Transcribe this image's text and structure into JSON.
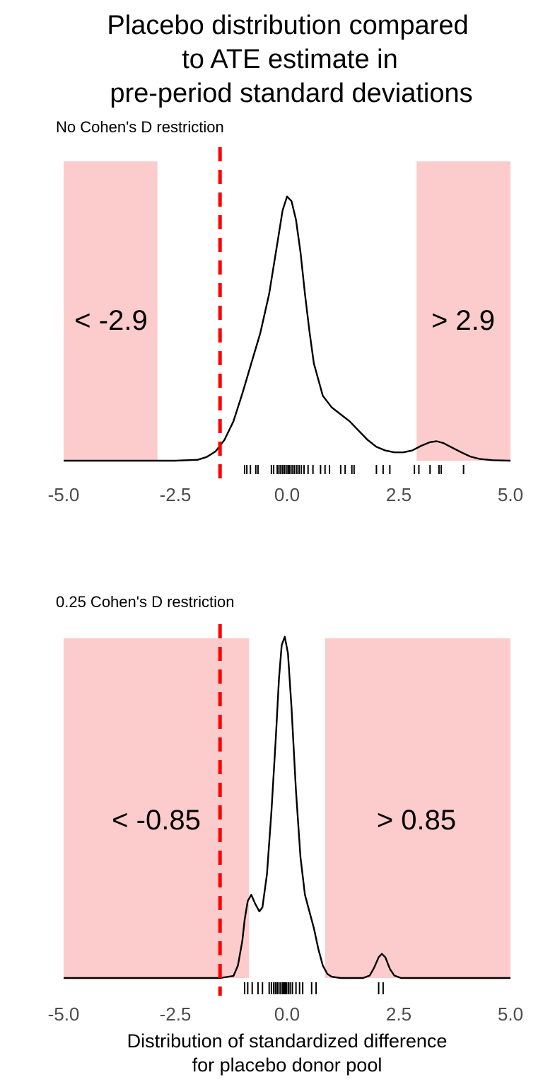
{
  "chart_data": {
    "type": "density",
    "title": [
      "Placebo distribution compared",
      "to ATE estimate in",
      "pre-period standard deviations"
    ],
    "xlabel": [
      "Distribution of standardized difference",
      "for placebo donor pool"
    ],
    "ate_line": {
      "x": -1.5,
      "color": "#ff0000",
      "style": "dashed"
    },
    "shade_color": "#fccccc",
    "xlim": [
      -5,
      5
    ],
    "x_ticks": [
      -5,
      -2.5,
      0,
      2.5,
      5
    ],
    "x_tick_labels": [
      "-5.0",
      "-2.5",
      "0.0",
      "2.5",
      "5.0"
    ],
    "panels": [
      {
        "subtitle": "No Cohen's D restriction",
        "regions": [
          {
            "from": -5,
            "to": -2.9,
            "label": "< -2.9"
          },
          {
            "from": 2.9,
            "to": 5,
            "label": "> 2.9"
          }
        ],
        "density": [
          [
            -5.0,
            0
          ],
          [
            -2.5,
            0
          ],
          [
            -2.0,
            0.002
          ],
          [
            -1.8,
            0.008
          ],
          [
            -1.6,
            0.02
          ],
          [
            -1.4,
            0.045
          ],
          [
            -1.2,
            0.085
          ],
          [
            -1.0,
            0.145
          ],
          [
            -0.8,
            0.21
          ],
          [
            -0.6,
            0.275
          ],
          [
            -0.4,
            0.36
          ],
          [
            -0.2,
            0.48
          ],
          [
            -0.1,
            0.54
          ],
          [
            0.0,
            0.57
          ],
          [
            0.1,
            0.56
          ],
          [
            0.2,
            0.52
          ],
          [
            0.3,
            0.45
          ],
          [
            0.4,
            0.36
          ],
          [
            0.5,
            0.28
          ],
          [
            0.6,
            0.21
          ],
          [
            0.8,
            0.14
          ],
          [
            1.0,
            0.115
          ],
          [
            1.2,
            0.1
          ],
          [
            1.4,
            0.085
          ],
          [
            1.6,
            0.065
          ],
          [
            1.8,
            0.045
          ],
          [
            2.0,
            0.03
          ],
          [
            2.2,
            0.022
          ],
          [
            2.4,
            0.018
          ],
          [
            2.6,
            0.018
          ],
          [
            2.8,
            0.022
          ],
          [
            3.0,
            0.032
          ],
          [
            3.2,
            0.04
          ],
          [
            3.35,
            0.042
          ],
          [
            3.5,
            0.038
          ],
          [
            3.7,
            0.028
          ],
          [
            3.9,
            0.018
          ],
          [
            4.1,
            0.009
          ],
          [
            4.3,
            0.004
          ],
          [
            4.6,
            0.001
          ],
          [
            5.0,
            0
          ]
        ],
        "density_ymax": 1.0,
        "rug": [
          -0.95,
          -0.9,
          -0.82,
          -0.7,
          -0.65,
          -0.35,
          -0.3,
          -0.22,
          -0.18,
          -0.14,
          -0.1,
          -0.06,
          -0.02,
          0.02,
          0.05,
          0.09,
          0.13,
          0.17,
          0.22,
          0.27,
          0.32,
          0.38,
          0.47,
          0.58,
          0.75,
          0.85,
          0.95,
          1.2,
          1.3,
          1.45,
          1.5,
          2.0,
          2.15,
          2.3,
          2.85,
          2.95,
          3.2,
          3.4,
          3.45,
          3.95
        ]
      },
      {
        "subtitle": "0.25 Cohen's D restriction",
        "regions": [
          {
            "from": -5,
            "to": -0.85,
            "label": "< -0.85"
          },
          {
            "from": 0.85,
            "to": 5,
            "label": "> 0.85"
          }
        ],
        "density": [
          [
            -5.0,
            0
          ],
          [
            -1.5,
            0
          ],
          [
            -1.2,
            0.005
          ],
          [
            -1.1,
            0.03
          ],
          [
            -1.0,
            0.09
          ],
          [
            -0.95,
            0.14
          ],
          [
            -0.88,
            0.185
          ],
          [
            -0.8,
            0.2
          ],
          [
            -0.72,
            0.18
          ],
          [
            -0.62,
            0.16
          ],
          [
            -0.55,
            0.17
          ],
          [
            -0.45,
            0.25
          ],
          [
            -0.35,
            0.4
          ],
          [
            -0.25,
            0.58
          ],
          [
            -0.18,
            0.72
          ],
          [
            -0.12,
            0.8
          ],
          [
            -0.05,
            0.82
          ],
          [
            0.02,
            0.78
          ],
          [
            0.1,
            0.65
          ],
          [
            0.2,
            0.45
          ],
          [
            0.3,
            0.29
          ],
          [
            0.4,
            0.2
          ],
          [
            0.5,
            0.16
          ],
          [
            0.6,
            0.12
          ],
          [
            0.7,
            0.07
          ],
          [
            0.8,
            0.03
          ],
          [
            0.9,
            0.01
          ],
          [
            1.0,
            0.003
          ],
          [
            1.2,
            0.0
          ],
          [
            1.7,
            0.0
          ],
          [
            1.85,
            0.006
          ],
          [
            1.95,
            0.025
          ],
          [
            2.05,
            0.05
          ],
          [
            2.12,
            0.058
          ],
          [
            2.2,
            0.05
          ],
          [
            2.3,
            0.022
          ],
          [
            2.4,
            0.006
          ],
          [
            2.55,
            0.0
          ],
          [
            5.0,
            0
          ]
        ],
        "density_ymax": 1.0,
        "rug": [
          -0.95,
          -0.88,
          -0.78,
          -0.65,
          -0.55,
          -0.4,
          -0.35,
          -0.3,
          -0.26,
          -0.22,
          -0.18,
          -0.14,
          -0.1,
          -0.07,
          -0.04,
          -0.01,
          0.03,
          0.07,
          0.12,
          0.2,
          0.28,
          0.35,
          0.55,
          0.65,
          2.05,
          2.15
        ]
      }
    ]
  }
}
